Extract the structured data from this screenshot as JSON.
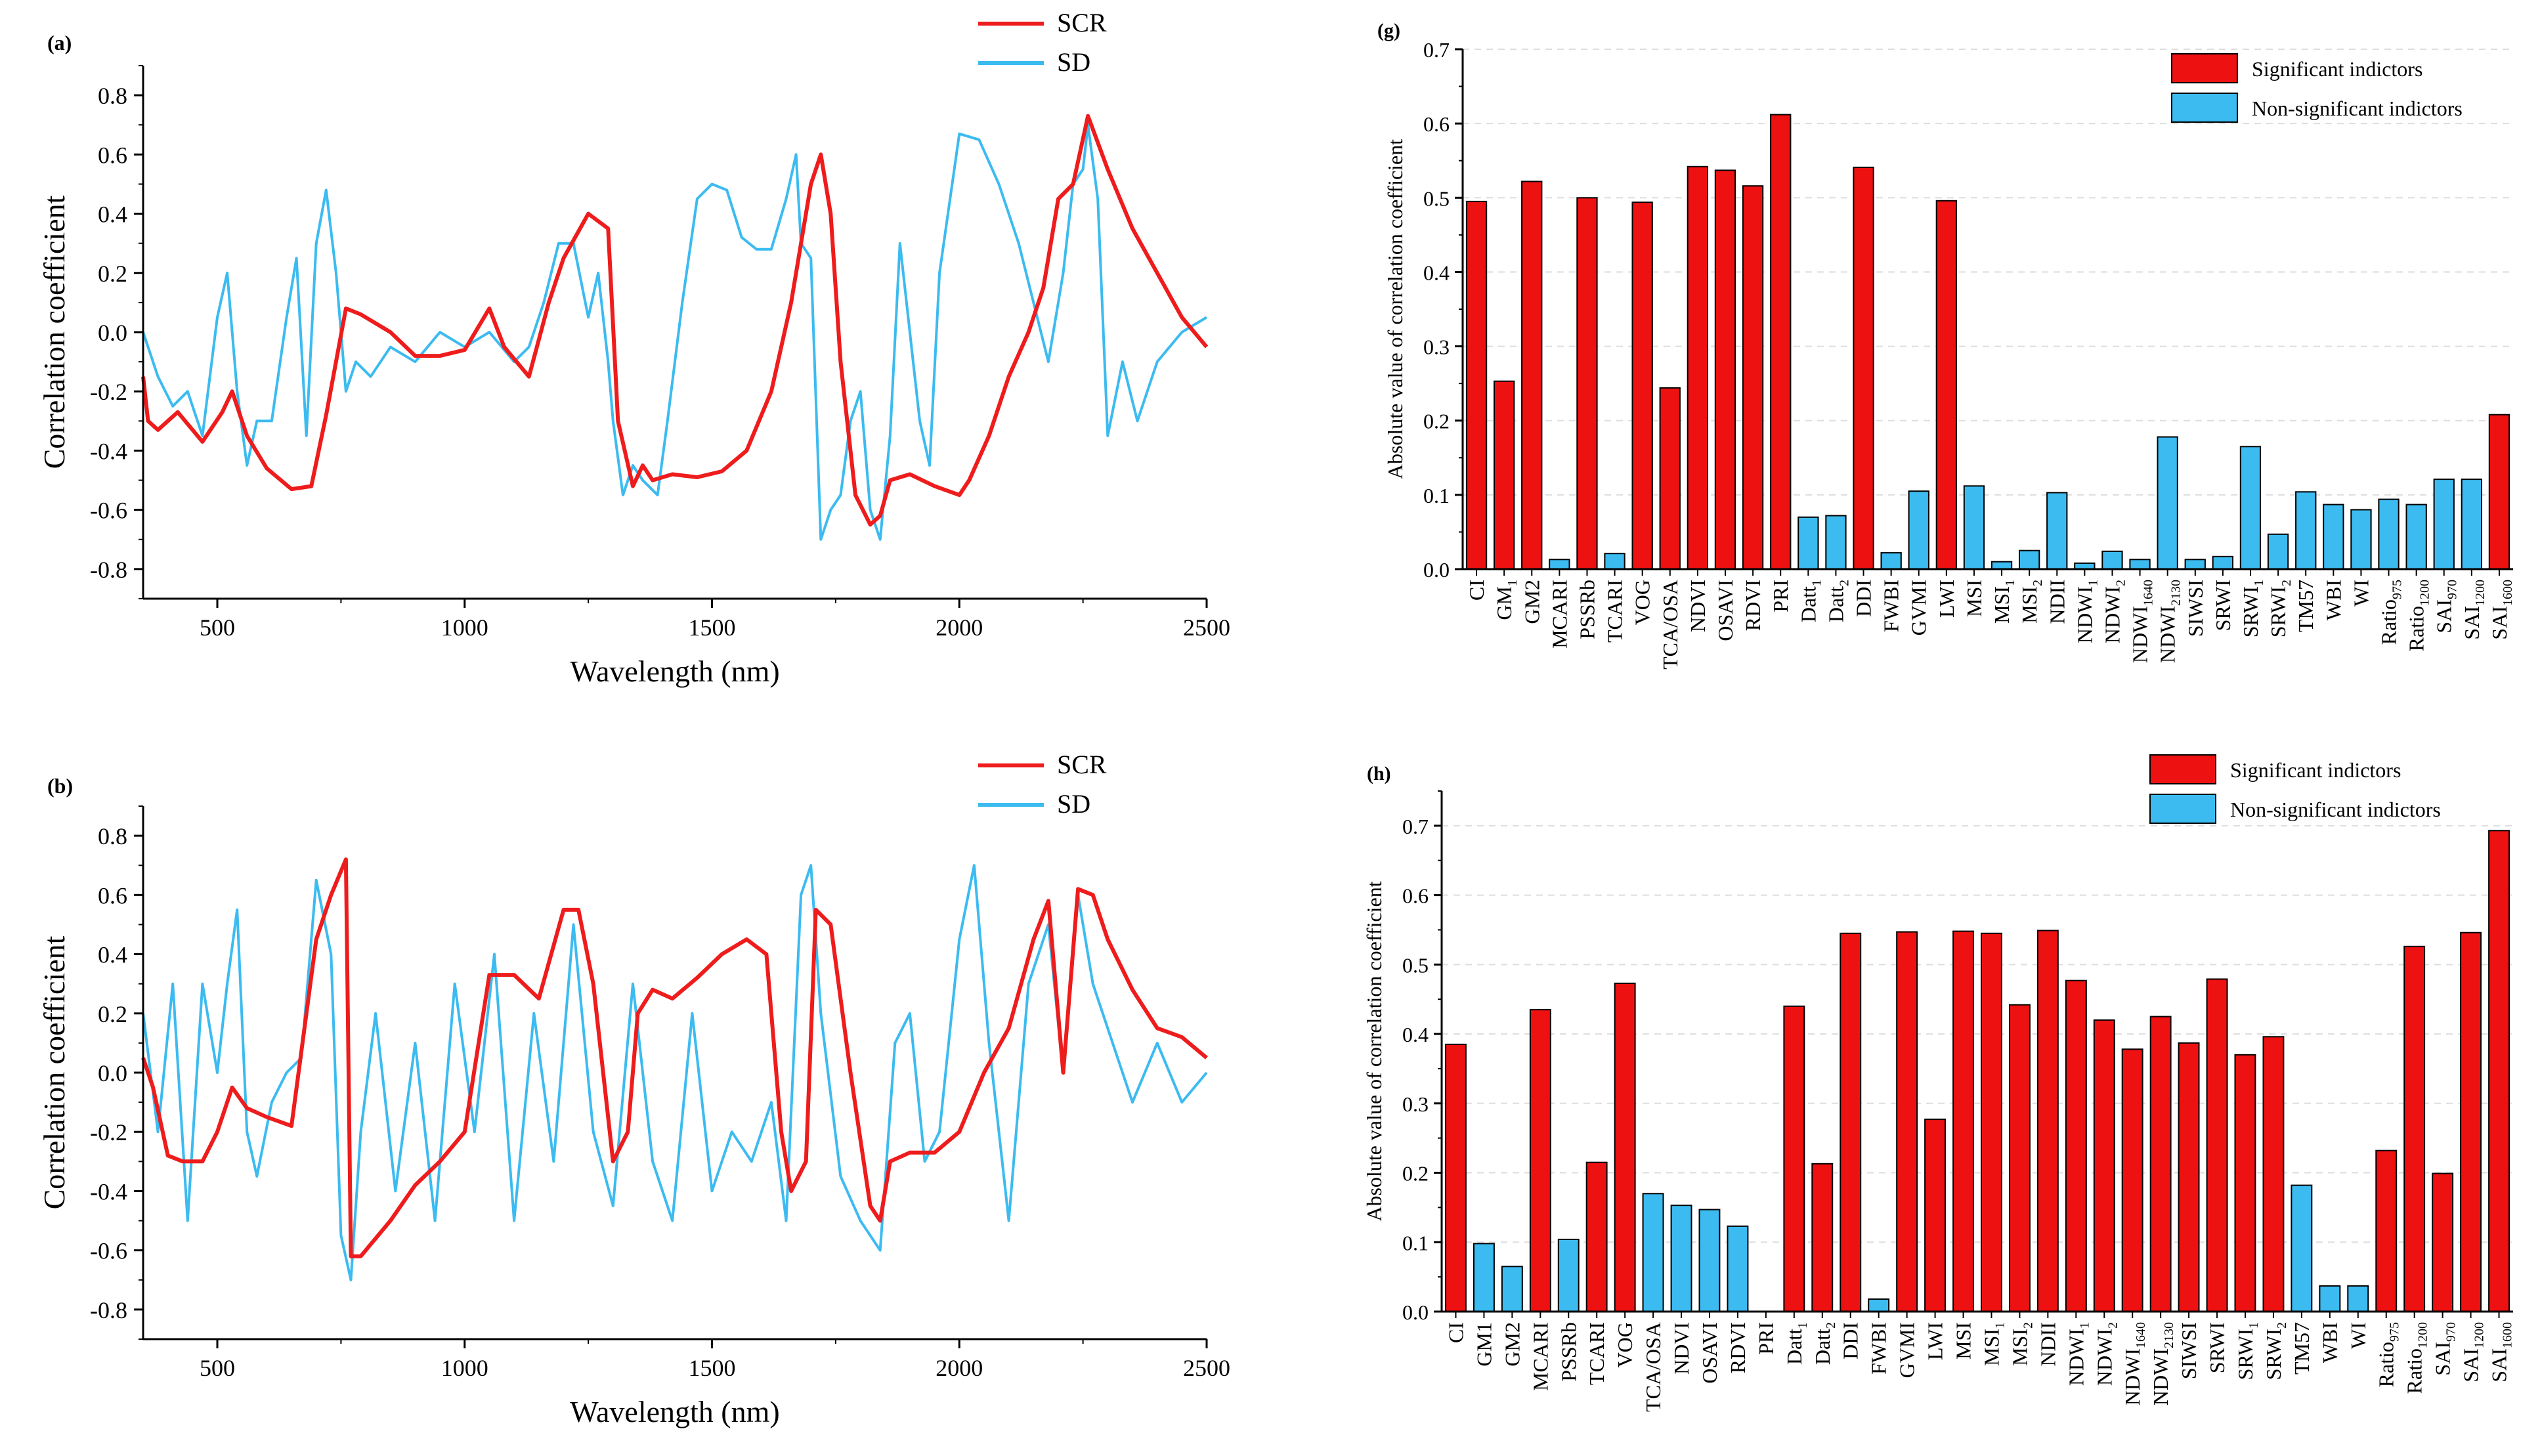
{
  "colors": {
    "scr": "#ee1c1c",
    "sd": "#3cbbf0",
    "sig": "#ee1111",
    "nonsig": "#3cbbf0"
  },
  "chart_data": [
    {
      "id": "a",
      "panel_label": "(a)",
      "type": "line",
      "xlabel": "Wavelength (nm)",
      "ylabel": "Correlation coefficient",
      "xlim": [
        350,
        2500
      ],
      "ylim": [
        -0.9,
        0.9
      ],
      "xticks": [
        500,
        1000,
        1500,
        2000,
        2500
      ],
      "xtick_labels": [
        "500",
        "1000",
        "1500",
        "2000",
        "2500"
      ],
      "yticks": [
        -0.8,
        -0.6,
        -0.4,
        -0.2,
        0.0,
        0.2,
        0.4,
        0.6,
        0.8
      ],
      "ytick_labels": [
        "-0.8",
        "-0.6",
        "-0.4",
        "-0.2",
        "0.0",
        "0.2",
        "0.4",
        "0.6",
        "0.8"
      ],
      "legend": [
        "SCR",
        "SD"
      ],
      "series": [
        {
          "name": "SCR",
          "x": [
            350,
            360,
            380,
            420,
            470,
            510,
            530,
            560,
            600,
            650,
            690,
            720,
            760,
            790,
            850,
            900,
            950,
            1000,
            1050,
            1080,
            1130,
            1170,
            1200,
            1250,
            1290,
            1310,
            1340,
            1360,
            1380,
            1420,
            1470,
            1520,
            1570,
            1620,
            1660,
            1700,
            1720,
            1740,
            1760,
            1790,
            1820,
            1840,
            1860,
            1900,
            1950,
            2000,
            2020,
            2060,
            2100,
            2140,
            2170,
            2200,
            2230,
            2260,
            2300,
            2350,
            2400,
            2450,
            2500
          ],
          "values": [
            -0.15,
            -0.3,
            -0.33,
            -0.27,
            -0.37,
            -0.27,
            -0.2,
            -0.35,
            -0.46,
            -0.53,
            -0.52,
            -0.28,
            0.08,
            0.06,
            0.0,
            -0.08,
            -0.08,
            -0.06,
            0.08,
            -0.05,
            -0.15,
            0.1,
            0.25,
            0.4,
            0.35,
            -0.3,
            -0.52,
            -0.45,
            -0.5,
            -0.48,
            -0.49,
            -0.47,
            -0.4,
            -0.2,
            0.1,
            0.5,
            0.6,
            0.4,
            -0.1,
            -0.55,
            -0.65,
            -0.62,
            -0.5,
            -0.48,
            -0.52,
            -0.55,
            -0.5,
            -0.35,
            -0.15,
            0.0,
            0.15,
            0.45,
            0.5,
            0.73,
            0.55,
            0.35,
            0.2,
            0.05,
            -0.05
          ]
        },
        {
          "name": "SD",
          "x": [
            350,
            380,
            410,
            440,
            470,
            500,
            520,
            540,
            560,
            580,
            610,
            640,
            660,
            680,
            700,
            720,
            740,
            760,
            780,
            810,
            850,
            900,
            950,
            1000,
            1050,
            1100,
            1130,
            1160,
            1190,
            1220,
            1250,
            1270,
            1290,
            1300,
            1320,
            1340,
            1360,
            1390,
            1410,
            1440,
            1470,
            1500,
            1530,
            1560,
            1590,
            1620,
            1650,
            1670,
            1680,
            1700,
            1720,
            1740,
            1760,
            1780,
            1800,
            1820,
            1840,
            1860,
            1880,
            1900,
            1920,
            1940,
            1960,
            2000,
            2040,
            2080,
            2120,
            2150,
            2180,
            2210,
            2230,
            2250,
            2260,
            2280,
            2300,
            2330,
            2360,
            2400,
            2450,
            2500
          ],
          "values": [
            0.0,
            -0.15,
            -0.25,
            -0.2,
            -0.35,
            0.05,
            0.2,
            -0.2,
            -0.45,
            -0.3,
            -0.3,
            0.05,
            0.25,
            -0.35,
            0.3,
            0.48,
            0.2,
            -0.2,
            -0.1,
            -0.15,
            -0.05,
            -0.1,
            0.0,
            -0.05,
            0.0,
            -0.1,
            -0.05,
            0.1,
            0.3,
            0.3,
            0.05,
            0.2,
            -0.1,
            -0.3,
            -0.55,
            -0.45,
            -0.5,
            -0.55,
            -0.3,
            0.1,
            0.45,
            0.5,
            0.48,
            0.32,
            0.28,
            0.28,
            0.45,
            0.6,
            0.3,
            0.25,
            -0.7,
            -0.6,
            -0.55,
            -0.3,
            -0.2,
            -0.6,
            -0.7,
            -0.35,
            0.3,
            0.0,
            -0.3,
            -0.45,
            0.2,
            0.67,
            0.65,
            0.5,
            0.3,
            0.1,
            -0.1,
            0.2,
            0.5,
            0.55,
            0.7,
            0.45,
            -0.35,
            -0.1,
            -0.3,
            -0.1,
            0.0,
            0.05
          ]
        }
      ]
    },
    {
      "id": "b",
      "panel_label": "(b)",
      "type": "line",
      "xlabel": "Wavelength (nm)",
      "ylabel": "Correlation coefficient",
      "xlim": [
        350,
        2500
      ],
      "ylim": [
        -0.9,
        0.9
      ],
      "xticks": [
        500,
        1000,
        1500,
        2000,
        2500
      ],
      "xtick_labels": [
        "500",
        "1000",
        "1500",
        "2000",
        "2500"
      ],
      "yticks": [
        -0.8,
        -0.6,
        -0.4,
        -0.2,
        0.0,
        0.2,
        0.4,
        0.6,
        0.8
      ],
      "ytick_labels": [
        "-0.8",
        "-0.6",
        "-0.4",
        "-0.2",
        "0.0",
        "0.2",
        "0.4",
        "0.6",
        "0.8"
      ],
      "legend": [
        "SCR",
        "SD"
      ],
      "series": [
        {
          "name": "SCR",
          "x": [
            350,
            370,
            400,
            430,
            470,
            500,
            530,
            560,
            600,
            650,
            700,
            730,
            760,
            770,
            790,
            850,
            900,
            950,
            1000,
            1050,
            1100,
            1150,
            1200,
            1230,
            1260,
            1300,
            1330,
            1350,
            1380,
            1420,
            1470,
            1520,
            1570,
            1610,
            1640,
            1660,
            1690,
            1710,
            1740,
            1780,
            1820,
            1840,
            1860,
            1900,
            1950,
            2000,
            2050,
            2100,
            2150,
            2180,
            2210,
            2240,
            2270,
            2300,
            2350,
            2400,
            2450,
            2500
          ],
          "values": [
            0.05,
            -0.05,
            -0.28,
            -0.3,
            -0.3,
            -0.2,
            -0.05,
            -0.12,
            -0.15,
            -0.18,
            0.45,
            0.6,
            0.72,
            -0.62,
            -0.62,
            -0.5,
            -0.38,
            -0.3,
            -0.2,
            0.33,
            0.33,
            0.25,
            0.55,
            0.55,
            0.3,
            -0.3,
            -0.2,
            0.2,
            0.28,
            0.25,
            0.32,
            0.4,
            0.45,
            0.4,
            -0.2,
            -0.4,
            -0.3,
            0.55,
            0.5,
            0.0,
            -0.45,
            -0.5,
            -0.3,
            -0.27,
            -0.27,
            -0.2,
            0.0,
            0.15,
            0.45,
            0.58,
            0.0,
            0.62,
            0.6,
            0.45,
            0.28,
            0.15,
            0.12,
            0.05
          ]
        },
        {
          "name": "SD",
          "x": [
            350,
            380,
            410,
            440,
            470,
            500,
            520,
            540,
            560,
            580,
            610,
            640,
            670,
            700,
            730,
            750,
            770,
            790,
            820,
            860,
            900,
            940,
            980,
            1020,
            1060,
            1100,
            1140,
            1180,
            1220,
            1260,
            1300,
            1340,
            1380,
            1420,
            1460,
            1500,
            1540,
            1580,
            1620,
            1650,
            1680,
            1700,
            1720,
            1760,
            1800,
            1840,
            1870,
            1900,
            1930,
            1960,
            2000,
            2030,
            2060,
            2100,
            2140,
            2180,
            2210,
            2240,
            2270,
            2310,
            2350,
            2400,
            2450,
            2500
          ],
          "values": [
            0.2,
            -0.2,
            0.3,
            -0.5,
            0.3,
            0.0,
            0.3,
            0.55,
            -0.2,
            -0.35,
            -0.1,
            0.0,
            0.05,
            0.65,
            0.4,
            -0.55,
            -0.7,
            -0.2,
            0.2,
            -0.4,
            0.1,
            -0.5,
            0.3,
            -0.2,
            0.4,
            -0.5,
            0.2,
            -0.3,
            0.5,
            -0.2,
            -0.45,
            0.3,
            -0.3,
            -0.5,
            0.2,
            -0.4,
            -0.2,
            -0.3,
            -0.1,
            -0.5,
            0.6,
            0.7,
            0.2,
            -0.35,
            -0.5,
            -0.6,
            0.1,
            0.2,
            -0.3,
            -0.2,
            0.45,
            0.7,
            0.1,
            -0.5,
            0.3,
            0.5,
            0.0,
            0.6,
            0.3,
            0.1,
            -0.1,
            0.1,
            -0.1,
            0.0
          ]
        }
      ]
    },
    {
      "id": "g",
      "panel_label": "(g)",
      "type": "bar",
      "ylabel": "Absolute value of correlation coefficient",
      "ylim": [
        0,
        0.7
      ],
      "yticks": [
        0.0,
        0.1,
        0.2,
        0.3,
        0.4,
        0.5,
        0.6,
        0.7
      ],
      "ytick_labels": [
        "0.0",
        "0.1",
        "0.2",
        "0.3",
        "0.4",
        "0.5",
        "0.6",
        "0.7"
      ],
      "legend": [
        "Significant indictors",
        "Non-significant indictors"
      ],
      "categories": [
        {
          "b": "CI",
          "s": ""
        },
        {
          "b": "GM",
          "s": "1"
        },
        {
          "b": "GM2",
          "s": ""
        },
        {
          "b": "MCARI",
          "s": ""
        },
        {
          "b": "PSSRb",
          "s": ""
        },
        {
          "b": "TCARI",
          "s": ""
        },
        {
          "b": "VOG",
          "s": ""
        },
        {
          "b": "TCA/OSA",
          "s": ""
        },
        {
          "b": "NDVI",
          "s": ""
        },
        {
          "b": "OSAVI",
          "s": ""
        },
        {
          "b": "RDVI",
          "s": ""
        },
        {
          "b": "PRI",
          "s": ""
        },
        {
          "b": "Datt",
          "s": "1"
        },
        {
          "b": "Datt",
          "s": "2"
        },
        {
          "b": "DDI",
          "s": ""
        },
        {
          "b": "FWBI",
          "s": ""
        },
        {
          "b": "GVMI",
          "s": ""
        },
        {
          "b": "LWI",
          "s": ""
        },
        {
          "b": "MSI",
          "s": ""
        },
        {
          "b": "MSI",
          "s": "1"
        },
        {
          "b": "MSI",
          "s": "2"
        },
        {
          "b": "NDII",
          "s": ""
        },
        {
          "b": "NDWI",
          "s": "1"
        },
        {
          "b": "NDWI",
          "s": "2"
        },
        {
          "b": "NDWI",
          "s": "1640"
        },
        {
          "b": "NDWI",
          "s": "2130"
        },
        {
          "b": "SIWSI",
          "s": ""
        },
        {
          "b": "SRWI",
          "s": ""
        },
        {
          "b": "SRWI",
          "s": "1"
        },
        {
          "b": "SRWI",
          "s": "2"
        },
        {
          "b": "TM57",
          "s": ""
        },
        {
          "b": "WBI",
          "s": ""
        },
        {
          "b": "WI",
          "s": ""
        },
        {
          "b": "Ratio",
          "s": "975"
        },
        {
          "b": "Ratio",
          "s": "1200"
        },
        {
          "b": "SAI",
          "s": "970"
        },
        {
          "b": "SAI",
          "s": "1200"
        },
        {
          "b": "SAI",
          "s": "1600"
        }
      ],
      "values": [
        0.495,
        0.253,
        0.522,
        0.013,
        0.5,
        0.021,
        0.494,
        0.244,
        0.542,
        0.537,
        0.516,
        0.612,
        0.07,
        0.072,
        0.541,
        0.022,
        0.105,
        0.496,
        0.112,
        0.01,
        0.025,
        0.103,
        0.008,
        0.024,
        0.013,
        0.178,
        0.013,
        0.017,
        0.165,
        0.047,
        0.104,
        0.087,
        0.08,
        0.094,
        0.087,
        0.121,
        0.121,
        0.208
      ],
      "significant": [
        true,
        true,
        true,
        false,
        true,
        false,
        true,
        true,
        true,
        true,
        true,
        true,
        false,
        false,
        true,
        false,
        false,
        true,
        false,
        false,
        false,
        false,
        false,
        false,
        false,
        false,
        false,
        false,
        false,
        false,
        false,
        false,
        false,
        false,
        false,
        false,
        false,
        true
      ]
    },
    {
      "id": "h",
      "panel_label": "(h)",
      "type": "bar",
      "ylabel": "Absolute value of correlation coefficient",
      "ylim": [
        0,
        0.75
      ],
      "yticks": [
        0.0,
        0.1,
        0.2,
        0.3,
        0.4,
        0.5,
        0.6,
        0.7
      ],
      "ytick_labels": [
        "0.0",
        "0.1",
        "0.2",
        "0.3",
        "0.4",
        "0.5",
        "0.6",
        "0.7"
      ],
      "legend": [
        "Significant indictors",
        "Non-significant indictors"
      ],
      "categories": [
        {
          "b": "CI",
          "s": ""
        },
        {
          "b": "GM1",
          "s": ""
        },
        {
          "b": "GM2",
          "s": ""
        },
        {
          "b": "MCARI",
          "s": ""
        },
        {
          "b": "PSSRb",
          "s": ""
        },
        {
          "b": "TCARI",
          "s": ""
        },
        {
          "b": "VOG",
          "s": ""
        },
        {
          "b": "TCA/OSA",
          "s": ""
        },
        {
          "b": "NDVI",
          "s": ""
        },
        {
          "b": "OSAVI",
          "s": ""
        },
        {
          "b": "RDVI",
          "s": ""
        },
        {
          "b": "PRI",
          "s": ""
        },
        {
          "b": "Datt",
          "s": "1"
        },
        {
          "b": "Datt",
          "s": "2"
        },
        {
          "b": "DDI",
          "s": ""
        },
        {
          "b": "FWBI",
          "s": ""
        },
        {
          "b": "GVMI",
          "s": ""
        },
        {
          "b": "LWI",
          "s": ""
        },
        {
          "b": "MSI",
          "s": ""
        },
        {
          "b": "MSI",
          "s": "1"
        },
        {
          "b": "MSI",
          "s": "2"
        },
        {
          "b": "NDII",
          "s": ""
        },
        {
          "b": "NDWI",
          "s": "1"
        },
        {
          "b": "NDWI",
          "s": "2"
        },
        {
          "b": "NDWI",
          "s": "1640"
        },
        {
          "b": "NDWI",
          "s": "2130"
        },
        {
          "b": "SIWSI",
          "s": ""
        },
        {
          "b": "SRWI",
          "s": ""
        },
        {
          "b": "SRWI",
          "s": "1"
        },
        {
          "b": "SRWI",
          "s": "2"
        },
        {
          "b": "TM57",
          "s": ""
        },
        {
          "b": "WBI",
          "s": ""
        },
        {
          "b": "WI",
          "s": ""
        },
        {
          "b": "Ratio",
          "s": "975"
        },
        {
          "b": "Ratio",
          "s": "1200"
        },
        {
          "b": "SAI",
          "s": "970"
        },
        {
          "b": "SAI",
          "s": "1200"
        },
        {
          "b": "SAI",
          "s": "1600"
        }
      ],
      "values": [
        0.385,
        0.098,
        0.065,
        0.435,
        0.104,
        0.215,
        0.473,
        0.17,
        0.153,
        0.147,
        0.123,
        0.0,
        0.44,
        0.213,
        0.545,
        0.018,
        0.547,
        0.277,
        0.548,
        0.545,
        0.442,
        0.549,
        0.477,
        0.42,
        0.378,
        0.425,
        0.387,
        0.479,
        0.37,
        0.396,
        0.182,
        0.037,
        0.037,
        0.232,
        0.526,
        0.199,
        0.546,
        0.693
      ],
      "significant": [
        true,
        false,
        false,
        true,
        false,
        true,
        true,
        false,
        false,
        false,
        false,
        false,
        true,
        true,
        true,
        false,
        true,
        true,
        true,
        true,
        true,
        true,
        true,
        true,
        true,
        true,
        true,
        true,
        true,
        true,
        false,
        false,
        false,
        true,
        true,
        true,
        true,
        true
      ]
    }
  ]
}
